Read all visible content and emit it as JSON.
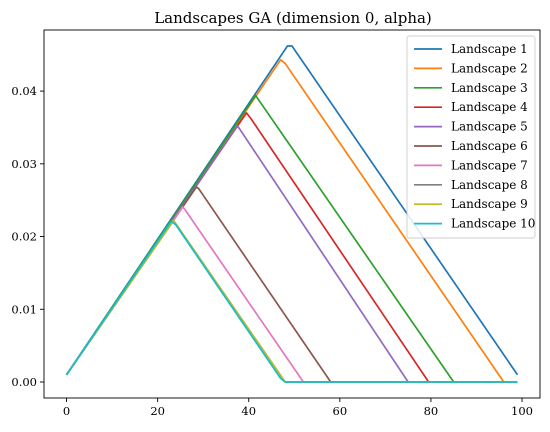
{
  "chart_data": {
    "type": "line",
    "title": "Landscapes GA (dimension 0, alpha)",
    "xlabel": "",
    "ylabel": "",
    "xlim": [
      -4.95,
      103.95
    ],
    "ylim": [
      -0.0022,
      0.0484
    ],
    "xticks": [
      0,
      20,
      40,
      60,
      80,
      100
    ],
    "xtick_labels": [
      "0",
      "20",
      "40",
      "60",
      "80",
      "100"
    ],
    "yticks": [
      0.0,
      0.01,
      0.02,
      0.03,
      0.04
    ],
    "ytick_labels": [
      "0.00",
      "0.01",
      "0.02",
      "0.03",
      "0.04"
    ],
    "grid": false,
    "legend_position": "top-right",
    "series": [
      {
        "name": "Landscape 1",
        "color": "#1f77b4",
        "points": [
          [
            0,
            0.001
          ],
          [
            48.5,
            0.0462
          ],
          [
            49.5,
            0.0462
          ],
          [
            99,
            0.001
          ]
        ]
      },
      {
        "name": "Landscape 2",
        "color": "#ff7f0e",
        "points": [
          [
            0,
            0.001
          ],
          [
            47,
            0.0443
          ],
          [
            48,
            0.0438
          ],
          [
            96,
            0.0
          ],
          [
            99,
            0.0
          ]
        ]
      },
      {
        "name": "Landscape 3",
        "color": "#2ca02c",
        "points": [
          [
            0,
            0.001
          ],
          [
            41.5,
            0.0394
          ],
          [
            85,
            0.0
          ],
          [
            99,
            0.0
          ]
        ]
      },
      {
        "name": "Landscape 4",
        "color": "#d62728",
        "points": [
          [
            0,
            0.001
          ],
          [
            39.5,
            0.037
          ],
          [
            40.5,
            0.0362
          ],
          [
            79.5,
            0.0
          ],
          [
            99,
            0.0
          ]
        ]
      },
      {
        "name": "Landscape 5",
        "color": "#9467bd",
        "points": [
          [
            0,
            0.001
          ],
          [
            37.5,
            0.0352
          ],
          [
            38,
            0.0348
          ],
          [
            75,
            0.0
          ],
          [
            99,
            0.0
          ]
        ]
      },
      {
        "name": "Landscape 6",
        "color": "#8c564b",
        "points": [
          [
            0,
            0.001
          ],
          [
            28.5,
            0.0268
          ],
          [
            29,
            0.0266
          ],
          [
            58,
            0.0
          ],
          [
            99,
            0.0
          ]
        ]
      },
      {
        "name": "Landscape 7",
        "color": "#e377c2",
        "points": [
          [
            0,
            0.001
          ],
          [
            25.5,
            0.0241
          ],
          [
            26,
            0.0237
          ],
          [
            52,
            0.0
          ],
          [
            99,
            0.0
          ]
        ]
      },
      {
        "name": "Landscape 8",
        "color": "#7f7f7f",
        "points": [
          [
            0,
            0.001
          ],
          [
            23.5,
            0.0222
          ],
          [
            48,
            0.0
          ],
          [
            99,
            0.0
          ]
        ]
      },
      {
        "name": "Landscape 9",
        "color": "#bcbd22",
        "points": [
          [
            0,
            0.001
          ],
          [
            23.5,
            0.0222
          ],
          [
            48,
            0.0
          ],
          [
            99,
            0.0
          ]
        ]
      },
      {
        "name": "Landscape 10",
        "color": "#17becf",
        "points": [
          [
            0,
            0.001
          ],
          [
            23,
            0.0221
          ],
          [
            24,
            0.0216
          ],
          [
            47,
            0.0005
          ],
          [
            48,
            0.0
          ],
          [
            99,
            0.0
          ]
        ]
      }
    ]
  }
}
